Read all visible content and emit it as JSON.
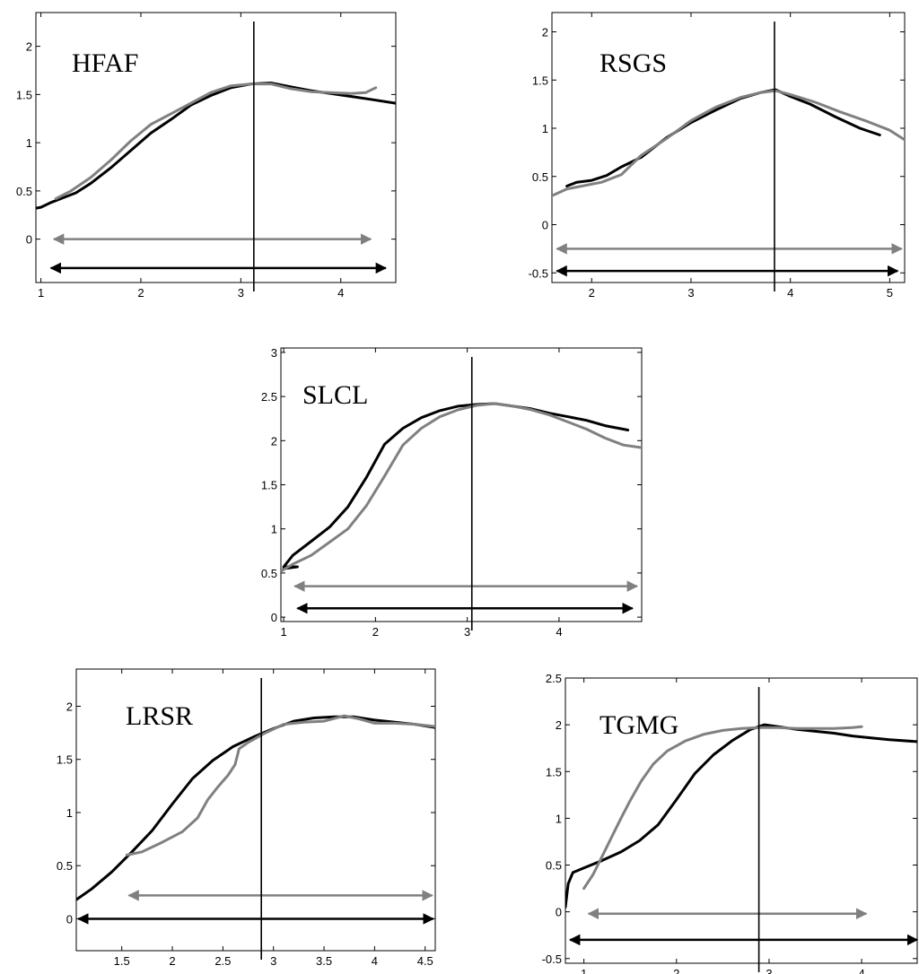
{
  "chart_data": [
    {
      "type": "line",
      "title": "HFAF",
      "xlim": [
        0.95,
        4.55
      ],
      "ylim": [
        -0.45,
        2.35
      ],
      "xticks": [
        1,
        2,
        3,
        4
      ],
      "xtick_labels": [
        "1",
        "2",
        "3",
        "4"
      ],
      "yticks": [
        0,
        0.5,
        1,
        1.5,
        2
      ],
      "ytick_labels": [
        "0",
        "0.5",
        "1",
        "1.5",
        "2"
      ],
      "vline_x": 3.13,
      "arrows": [
        {
          "color": "gray",
          "x_start": 1.13,
          "x_end": 4.3,
          "y": 0
        },
        {
          "color": "black",
          "x_start": 1.1,
          "x_end": 4.45,
          "y": -0.3
        }
      ],
      "series": [
        {
          "color": "black",
          "points": [
            [
              0.95,
              0.32
            ],
            [
              1.0,
              0.33
            ],
            [
              1.1,
              0.38
            ],
            [
              1.2,
              0.42
            ],
            [
              1.35,
              0.48
            ],
            [
              1.5,
              0.58
            ],
            [
              1.7,
              0.74
            ],
            [
              1.9,
              0.92
            ],
            [
              2.1,
              1.1
            ],
            [
              2.3,
              1.24
            ],
            [
              2.5,
              1.39
            ],
            [
              2.7,
              1.49
            ],
            [
              2.9,
              1.57
            ],
            [
              3.1,
              1.61
            ],
            [
              3.3,
              1.62
            ],
            [
              3.5,
              1.58
            ],
            [
              3.7,
              1.54
            ],
            [
              3.9,
              1.51
            ],
            [
              4.1,
              1.48
            ],
            [
              4.3,
              1.45
            ],
            [
              4.55,
              1.41
            ]
          ]
        },
        {
          "color": "gray",
          "points": [
            [
              1.15,
              0.42
            ],
            [
              1.3,
              0.5
            ],
            [
              1.5,
              0.64
            ],
            [
              1.7,
              0.82
            ],
            [
              1.9,
              1.02
            ],
            [
              2.1,
              1.19
            ],
            [
              2.3,
              1.3
            ],
            [
              2.5,
              1.41
            ],
            [
              2.7,
              1.52
            ],
            [
              2.9,
              1.59
            ],
            [
              3.1,
              1.61
            ],
            [
              3.3,
              1.61
            ],
            [
              3.5,
              1.56
            ],
            [
              3.7,
              1.53
            ],
            [
              3.9,
              1.52
            ],
            [
              4.1,
              1.51
            ],
            [
              4.25,
              1.52
            ],
            [
              4.35,
              1.57
            ]
          ]
        }
      ]
    },
    {
      "type": "line",
      "title": "RSGS",
      "xlim": [
        1.6,
        5.15
      ],
      "ylim": [
        -0.6,
        2.2
      ],
      "xticks": [
        2,
        3,
        4,
        5
      ],
      "xtick_labels": [
        "2",
        "3",
        "4",
        "5"
      ],
      "yticks": [
        -0.5,
        0,
        0.5,
        1,
        1.5,
        2
      ],
      "ytick_labels": [
        "-0.5",
        "0",
        "0.5",
        "1",
        "1.5",
        "2"
      ],
      "vline_x": 3.84,
      "arrows": [
        {
          "color": "gray",
          "x_start": 1.65,
          "x_end": 5.12,
          "y": -0.25
        },
        {
          "color": "black",
          "x_start": 1.65,
          "x_end": 5.08,
          "y": -0.48
        }
      ],
      "series": [
        {
          "color": "black",
          "points": [
            [
              1.75,
              0.4
            ],
            [
              1.85,
              0.44
            ],
            [
              2.0,
              0.46
            ],
            [
              2.15,
              0.51
            ],
            [
              2.3,
              0.6
            ],
            [
              2.5,
              0.7
            ],
            [
              2.75,
              0.9
            ],
            [
              3.0,
              1.06
            ],
            [
              3.25,
              1.19
            ],
            [
              3.5,
              1.31
            ],
            [
              3.7,
              1.37
            ],
            [
              3.85,
              1.4
            ],
            [
              4.0,
              1.33
            ],
            [
              4.2,
              1.25
            ],
            [
              4.45,
              1.12
            ],
            [
              4.7,
              1.0
            ],
            [
              4.9,
              0.93
            ]
          ]
        },
        {
          "color": "gray",
          "points": [
            [
              1.6,
              0.3
            ],
            [
              1.75,
              0.37
            ],
            [
              1.9,
              0.4
            ],
            [
              2.1,
              0.44
            ],
            [
              2.3,
              0.52
            ],
            [
              2.5,
              0.72
            ],
            [
              2.75,
              0.89
            ],
            [
              3.0,
              1.08
            ],
            [
              3.25,
              1.22
            ],
            [
              3.5,
              1.32
            ],
            [
              3.7,
              1.37
            ],
            [
              3.85,
              1.39
            ],
            [
              4.0,
              1.35
            ],
            [
              4.25,
              1.27
            ],
            [
              4.5,
              1.17
            ],
            [
              4.75,
              1.08
            ],
            [
              5.0,
              0.98
            ],
            [
              5.15,
              0.88
            ]
          ]
        }
      ]
    },
    {
      "type": "line",
      "title": "SLCL",
      "xlim": [
        0.97,
        4.9
      ],
      "ylim": [
        -0.05,
        3.05
      ],
      "xticks": [
        1,
        2,
        3,
        4
      ],
      "xtick_labels": [
        "1",
        "2",
        "3",
        "4"
      ],
      "yticks": [
        0,
        0.5,
        1,
        1.5,
        2,
        2.5,
        3
      ],
      "ytick_labels": [
        "0",
        "0.5",
        "1",
        "1.5",
        "2",
        "2.5",
        "3"
      ],
      "vline_x": 3.05,
      "arrows": [
        {
          "color": "gray",
          "x_start": 1.12,
          "x_end": 4.85,
          "y": 0.35
        },
        {
          "color": "black",
          "x_start": 1.15,
          "x_end": 4.8,
          "y": 0.1
        }
      ],
      "series": [
        {
          "color": "black",
          "points": [
            [
              1.0,
              0.55
            ],
            [
              1.15,
              0.57
            ],
            [
              1.0,
              0.57
            ],
            [
              1.1,
              0.7
            ],
            [
              1.3,
              0.86
            ],
            [
              1.5,
              1.02
            ],
            [
              1.7,
              1.25
            ],
            [
              1.9,
              1.58
            ],
            [
              2.1,
              1.96
            ],
            [
              2.3,
              2.14
            ],
            [
              2.5,
              2.26
            ],
            [
              2.7,
              2.34
            ],
            [
              2.9,
              2.39
            ],
            [
              3.1,
              2.41
            ],
            [
              3.3,
              2.42
            ],
            [
              3.5,
              2.39
            ],
            [
              3.7,
              2.36
            ],
            [
              3.9,
              2.31
            ],
            [
              4.1,
              2.27
            ],
            [
              4.3,
              2.23
            ],
            [
              4.5,
              2.17
            ],
            [
              4.75,
              2.12
            ]
          ]
        },
        {
          "color": "gray",
          "points": [
            [
              0.97,
              0.52
            ],
            [
              1.1,
              0.6
            ],
            [
              1.3,
              0.7
            ],
            [
              1.5,
              0.85
            ],
            [
              1.7,
              1.0
            ],
            [
              1.9,
              1.26
            ],
            [
              2.1,
              1.6
            ],
            [
              2.3,
              1.95
            ],
            [
              2.5,
              2.14
            ],
            [
              2.7,
              2.27
            ],
            [
              2.9,
              2.35
            ],
            [
              3.1,
              2.4
            ],
            [
              3.3,
              2.42
            ],
            [
              3.5,
              2.39
            ],
            [
              3.7,
              2.35
            ],
            [
              3.9,
              2.29
            ],
            [
              4.1,
              2.21
            ],
            [
              4.3,
              2.13
            ],
            [
              4.5,
              2.03
            ],
            [
              4.7,
              1.95
            ],
            [
              4.9,
              1.92
            ]
          ]
        }
      ]
    },
    {
      "type": "line",
      "title": "LRSR",
      "xlim": [
        1.05,
        4.6
      ],
      "ylim": [
        -0.3,
        2.35
      ],
      "xticks": [
        1.5,
        2,
        2.5,
        3,
        3.5,
        4,
        4.5
      ],
      "xtick_labels": [
        "1.5",
        "2",
        "2.5",
        "3",
        "3.5",
        "4",
        "4.5"
      ],
      "yticks": [
        0,
        0.5,
        1,
        1.5,
        2
      ],
      "ytick_labels": [
        "0",
        "0.5",
        "1",
        "1.5",
        "2"
      ],
      "vline_x": 2.88,
      "arrows": [
        {
          "color": "gray",
          "x_start": 1.57,
          "x_end": 4.57,
          "y": 0.22
        },
        {
          "color": "black",
          "x_start": 1.07,
          "x_end": 4.58,
          "y": 0.0
        }
      ],
      "series": [
        {
          "color": "black",
          "points": [
            [
              1.05,
              0.18
            ],
            [
              1.2,
              0.28
            ],
            [
              1.4,
              0.44
            ],
            [
              1.6,
              0.63
            ],
            [
              1.8,
              0.83
            ],
            [
              2.0,
              1.08
            ],
            [
              2.2,
              1.32
            ],
            [
              2.4,
              1.49
            ],
            [
              2.6,
              1.62
            ],
            [
              2.8,
              1.71
            ],
            [
              3.0,
              1.79
            ],
            [
              3.2,
              1.86
            ],
            [
              3.4,
              1.89
            ],
            [
              3.6,
              1.9
            ],
            [
              3.8,
              1.9
            ],
            [
              4.0,
              1.87
            ],
            [
              4.2,
              1.85
            ],
            [
              4.4,
              1.83
            ],
            [
              4.6,
              1.8
            ]
          ]
        },
        {
          "color": "gray",
          "points": [
            [
              1.55,
              0.6
            ],
            [
              1.7,
              0.63
            ],
            [
              1.9,
              0.72
            ],
            [
              2.1,
              0.82
            ],
            [
              2.25,
              0.95
            ],
            [
              2.35,
              1.12
            ],
            [
              2.45,
              1.24
            ],
            [
              2.55,
              1.35
            ],
            [
              2.62,
              1.45
            ],
            [
              2.66,
              1.6
            ],
            [
              2.75,
              1.66
            ],
            [
              2.9,
              1.74
            ],
            [
              3.1,
              1.83
            ],
            [
              3.3,
              1.85
            ],
            [
              3.5,
              1.86
            ],
            [
              3.7,
              1.91
            ],
            [
              3.85,
              1.88
            ],
            [
              4.0,
              1.84
            ],
            [
              4.2,
              1.84
            ],
            [
              4.4,
              1.83
            ],
            [
              4.6,
              1.81
            ]
          ]
        }
      ]
    },
    {
      "type": "line",
      "title": "TGMG",
      "xlim": [
        0.8,
        4.6
      ],
      "ylim": [
        -0.55,
        2.5
      ],
      "xticks": [
        1,
        2,
        3,
        4
      ],
      "xtick_labels": [
        "1",
        "2",
        "3",
        "4"
      ],
      "yticks": [
        -0.5,
        0,
        0.5,
        1,
        1.5,
        2,
        2.5
      ],
      "ytick_labels": [
        "-0.5",
        "0",
        "0.5",
        "1",
        "1.5",
        "2",
        "2.5"
      ],
      "vline_x": 2.89,
      "arrows": [
        {
          "color": "gray",
          "x_start": 1.05,
          "x_end": 4.05,
          "y": -0.02
        },
        {
          "color": "black",
          "x_start": 0.85,
          "x_end": 4.6,
          "y": -0.3
        }
      ],
      "series": [
        {
          "color": "black",
          "points": [
            [
              0.8,
              0.05
            ],
            [
              0.83,
              0.3
            ],
            [
              0.88,
              0.42
            ],
            [
              1.0,
              0.47
            ],
            [
              1.2,
              0.55
            ],
            [
              1.4,
              0.64
            ],
            [
              1.6,
              0.76
            ],
            [
              1.8,
              0.93
            ],
            [
              2.0,
              1.2
            ],
            [
              2.2,
              1.48
            ],
            [
              2.4,
              1.68
            ],
            [
              2.6,
              1.83
            ],
            [
              2.8,
              1.95
            ],
            [
              2.95,
              2.0
            ],
            [
              3.1,
              1.98
            ],
            [
              3.3,
              1.95
            ],
            [
              3.5,
              1.93
            ],
            [
              3.7,
              1.91
            ],
            [
              3.9,
              1.88
            ],
            [
              4.1,
              1.86
            ],
            [
              4.3,
              1.84
            ],
            [
              4.6,
              1.82
            ]
          ]
        },
        {
          "color": "gray",
          "points": [
            [
              1.0,
              0.25
            ],
            [
              1.1,
              0.4
            ],
            [
              1.2,
              0.6
            ],
            [
              1.3,
              0.8
            ],
            [
              1.4,
              1.0
            ],
            [
              1.5,
              1.19
            ],
            [
              1.62,
              1.4
            ],
            [
              1.75,
              1.58
            ],
            [
              1.9,
              1.72
            ],
            [
              2.1,
              1.83
            ],
            [
              2.3,
              1.9
            ],
            [
              2.5,
              1.94
            ],
            [
              2.7,
              1.96
            ],
            [
              2.9,
              1.97
            ],
            [
              3.1,
              1.97
            ],
            [
              3.3,
              1.96
            ],
            [
              3.5,
              1.96
            ],
            [
              3.7,
              1.96
            ],
            [
              3.9,
              1.97
            ],
            [
              4.0,
              1.98
            ]
          ]
        }
      ]
    }
  ]
}
